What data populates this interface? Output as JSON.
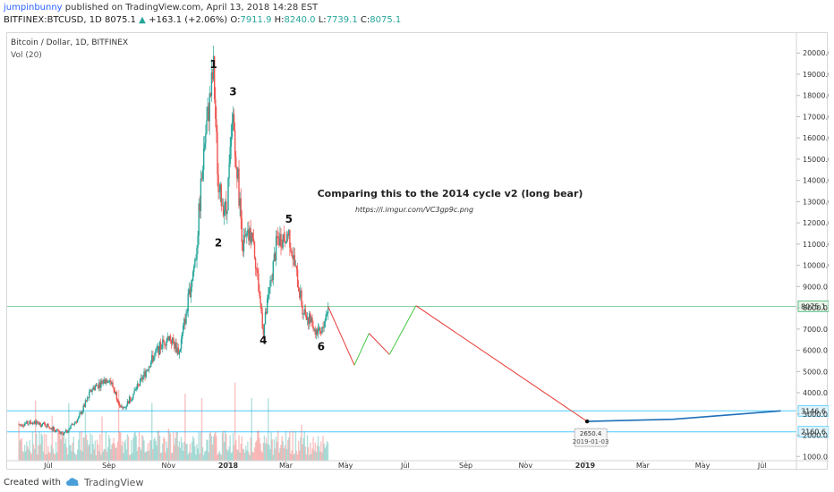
{
  "header": {
    "author": "jumpinbunny",
    "published_text": "published on TradingView.com, April 13, 2018 14:28 EST",
    "symbol": "BITFINEX:BTCUSD, 1D",
    "last": "8075.1",
    "change": "+163.1 (+2.06%)",
    "open_label": "O:",
    "open_value": "7911.9",
    "high_label": "H:",
    "high_value": "8240.0",
    "low_label": "L:",
    "low_value": "7739.1",
    "close_label": "C:",
    "close_value": "8075.1",
    "up_color": "#26a69a"
  },
  "footer": {
    "created_with": "Created with",
    "brand": "TradingView"
  },
  "chart_data": {
    "type": "candlestick",
    "legend_title": "Bitcoin / Dollar, 1D, BITFINEX",
    "volume_label": "Vol (20)",
    "annotation_title": "Comparing this to the 2014 cycle v2 (long bear)",
    "annotation_link": "https://i.imgur.com/VC3gp9c.png",
    "x_ticks": [
      "Jul",
      "Sep",
      "Nov",
      "2018",
      "Mar",
      "May",
      "Jul",
      "Sep",
      "Nov",
      "2019",
      "Mar",
      "May",
      "Jul"
    ],
    "y_ticks": [
      1000,
      2000,
      3000,
      4000,
      5000,
      6000,
      7000,
      8000,
      9000,
      10000,
      11000,
      12000,
      13000,
      14000,
      15000,
      16000,
      17000,
      18000,
      19000,
      20000
    ],
    "y_tick_labels": [
      "1000.0",
      "2000.0",
      "3000.0",
      "4000.0",
      "5000.0",
      "6000.0",
      "7000.0",
      "8000.0",
      "9000.0",
      "10000.0",
      "11000.0",
      "12000.0",
      "13000.0",
      "14000.0",
      "15000.0",
      "16000.0",
      "17000.0",
      "18000.0",
      "19000.0",
      "20000.0"
    ],
    "ylim": [
      800,
      20600
    ],
    "price_series": [
      [
        "2017-06-01",
        2500
      ],
      [
        "2017-06-15",
        2600
      ],
      [
        "2017-07-01",
        2450
      ],
      [
        "2017-07-16",
        2000
      ],
      [
        "2017-08-01",
        2800
      ],
      [
        "2017-08-15",
        4200
      ],
      [
        "2017-09-01",
        4700
      ],
      [
        "2017-09-15",
        3200
      ],
      [
        "2017-10-01",
        4300
      ],
      [
        "2017-10-15",
        5600
      ],
      [
        "2017-11-01",
        6700
      ],
      [
        "2017-11-12",
        5900
      ],
      [
        "2017-11-29",
        10500
      ],
      [
        "2017-12-07",
        15500
      ],
      [
        "2017-12-17",
        19200
      ],
      [
        "2017-12-22",
        13500
      ],
      [
        "2017-12-30",
        12500
      ],
      [
        "2018-01-06",
        17000
      ],
      [
        "2018-01-16",
        11000
      ],
      [
        "2018-01-26",
        11500
      ],
      [
        "2018-02-06",
        6900
      ],
      [
        "2018-02-20",
        11200
      ],
      [
        "2018-03-04",
        11500
      ],
      [
        "2018-03-18",
        8000
      ],
      [
        "2018-04-01",
        6900
      ],
      [
        "2018-04-06",
        6700
      ],
      [
        "2018-04-13",
        8075
      ]
    ],
    "projection_red_1": [
      [
        "2018-04-13",
        8075
      ],
      [
        "2018-05-10",
        5300
      ]
    ],
    "projection_green_1": [
      [
        "2018-05-10",
        5300
      ],
      [
        "2018-05-25",
        6800
      ]
    ],
    "projection_red_2": [
      [
        "2018-05-25",
        6800
      ],
      [
        "2018-06-15",
        5800
      ]
    ],
    "projection_green_2": [
      [
        "2018-06-15",
        5800
      ],
      [
        "2018-07-12",
        8100
      ]
    ],
    "projection_red_3": [
      [
        "2018-07-12",
        8100
      ],
      [
        "2019-01-03",
        2650.4
      ]
    ],
    "projection_blue": [
      [
        "2019-01-03",
        2650.4
      ],
      [
        "2019-04-01",
        2750
      ],
      [
        "2019-07-20",
        3146.6
      ]
    ],
    "wave_labels": [
      {
        "text": "1",
        "date": "2017-12-17",
        "price": 19300
      },
      {
        "text": "2",
        "date": "2017-12-22",
        "price": 10900
      },
      {
        "text": "3",
        "date": "2018-01-06",
        "price": 18000
      },
      {
        "text": "4",
        "date": "2018-02-06",
        "price": 6300
      },
      {
        "text": "5",
        "date": "2018-03-04",
        "price": 12000
      },
      {
        "text": "6",
        "date": "2018-04-06",
        "price": 6000
      }
    ],
    "horizontal_levels": [
      {
        "value": 8075.1,
        "label": "8075.1",
        "color": "#3cb371"
      },
      {
        "value": 3146.6,
        "label": "3146.6",
        "color": "#4dc9ff"
      },
      {
        "value": 2160.6,
        "label": "2160.6",
        "color": "#4dc9ff"
      }
    ],
    "target_point": {
      "date": "2019-01-03",
      "price": 2650.4,
      "label_value": "2650.4",
      "label_date": "2019-01-03"
    },
    "colors": {
      "up": "#26a69a",
      "down": "#ef5350",
      "projection_red": "#e53935",
      "projection_green": "#43c943",
      "projection_blue": "#1e6fb8",
      "level": "#4dc9ff"
    }
  }
}
